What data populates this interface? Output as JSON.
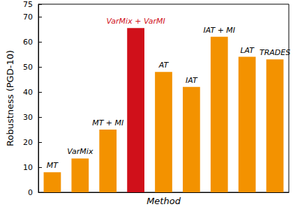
{
  "chart_data": {
    "type": "bar",
    "x_label": "Method",
    "y_label": "Robustness (PGD-10)",
    "categories": [
      "MT",
      "VarMix",
      "MT + MI",
      "VarMix + VarMI",
      "AT",
      "IAT",
      "IAT + MI",
      "LAT",
      "TRADES"
    ],
    "values": [
      8,
      13.5,
      25,
      65.5,
      48,
      42,
      62,
      54,
      53
    ],
    "colors": [
      "#f39200",
      "#f39200",
      "#f39200",
      "#d0101a",
      "#f39200",
      "#f39200",
      "#f39200",
      "#f39200",
      "#f39200"
    ],
    "ylim": [
      0,
      75
    ],
    "yticks": [
      0,
      10,
      20,
      30,
      40,
      50,
      60,
      70
    ],
    "grid": false,
    "tick_labels": "y"
  }
}
